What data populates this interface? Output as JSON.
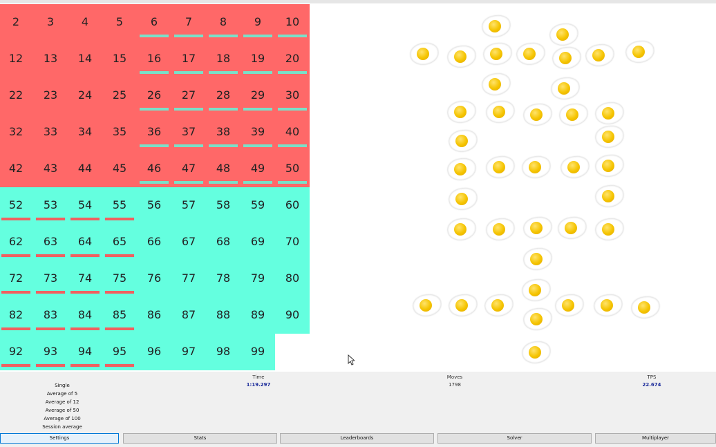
{
  "colors": {
    "red_tile": "#ff6868",
    "teal_tile": "#64ffdf",
    "teal_bar": "#7ae0c8",
    "red_bar": "#f06060",
    "board_bg": "#ffffff",
    "time_value": "#1a2a9a"
  },
  "board": {
    "tiles": [
      {
        "n": "2",
        "row": 0,
        "col": 0,
        "color": "red",
        "bar": false
      },
      {
        "n": "3",
        "row": 0,
        "col": 1,
        "color": "red",
        "bar": false
      },
      {
        "n": "4",
        "row": 0,
        "col": 2,
        "color": "red",
        "bar": false
      },
      {
        "n": "5",
        "row": 0,
        "col": 3,
        "color": "red",
        "bar": false
      },
      {
        "n": "6",
        "row": 0,
        "col": 4,
        "color": "red",
        "bar": true
      },
      {
        "n": "7",
        "row": 0,
        "col": 5,
        "color": "red",
        "bar": true
      },
      {
        "n": "8",
        "row": 0,
        "col": 6,
        "color": "red",
        "bar": true
      },
      {
        "n": "9",
        "row": 0,
        "col": 7,
        "color": "red",
        "bar": true
      },
      {
        "n": "10",
        "row": 0,
        "col": 8,
        "color": "red",
        "bar": true
      },
      {
        "n": "12",
        "row": 1,
        "col": 0,
        "color": "red",
        "bar": false
      },
      {
        "n": "13",
        "row": 1,
        "col": 1,
        "color": "red",
        "bar": false
      },
      {
        "n": "14",
        "row": 1,
        "col": 2,
        "color": "red",
        "bar": false
      },
      {
        "n": "15",
        "row": 1,
        "col": 3,
        "color": "red",
        "bar": false
      },
      {
        "n": "16",
        "row": 1,
        "col": 4,
        "color": "red",
        "bar": true
      },
      {
        "n": "17",
        "row": 1,
        "col": 5,
        "color": "red",
        "bar": true
      },
      {
        "n": "18",
        "row": 1,
        "col": 6,
        "color": "red",
        "bar": true
      },
      {
        "n": "19",
        "row": 1,
        "col": 7,
        "color": "red",
        "bar": true
      },
      {
        "n": "20",
        "row": 1,
        "col": 8,
        "color": "red",
        "bar": true
      },
      {
        "n": "22",
        "row": 2,
        "col": 0,
        "color": "red",
        "bar": false
      },
      {
        "n": "23",
        "row": 2,
        "col": 1,
        "color": "red",
        "bar": false
      },
      {
        "n": "24",
        "row": 2,
        "col": 2,
        "color": "red",
        "bar": false
      },
      {
        "n": "25",
        "row": 2,
        "col": 3,
        "color": "red",
        "bar": false
      },
      {
        "n": "26",
        "row": 2,
        "col": 4,
        "color": "red",
        "bar": true
      },
      {
        "n": "27",
        "row": 2,
        "col": 5,
        "color": "red",
        "bar": true
      },
      {
        "n": "28",
        "row": 2,
        "col": 6,
        "color": "red",
        "bar": true
      },
      {
        "n": "29",
        "row": 2,
        "col": 7,
        "color": "red",
        "bar": true
      },
      {
        "n": "30",
        "row": 2,
        "col": 8,
        "color": "red",
        "bar": true
      },
      {
        "n": "32",
        "row": 3,
        "col": 0,
        "color": "red",
        "bar": false
      },
      {
        "n": "33",
        "row": 3,
        "col": 1,
        "color": "red",
        "bar": false
      },
      {
        "n": "34",
        "row": 3,
        "col": 2,
        "color": "red",
        "bar": false
      },
      {
        "n": "35",
        "row": 3,
        "col": 3,
        "color": "red",
        "bar": false
      },
      {
        "n": "36",
        "row": 3,
        "col": 4,
        "color": "red",
        "bar": true
      },
      {
        "n": "37",
        "row": 3,
        "col": 5,
        "color": "red",
        "bar": true
      },
      {
        "n": "38",
        "row": 3,
        "col": 6,
        "color": "red",
        "bar": true
      },
      {
        "n": "39",
        "row": 3,
        "col": 7,
        "color": "red",
        "bar": true
      },
      {
        "n": "40",
        "row": 3,
        "col": 8,
        "color": "red",
        "bar": true
      },
      {
        "n": "42",
        "row": 4,
        "col": 0,
        "color": "red",
        "bar": false
      },
      {
        "n": "43",
        "row": 4,
        "col": 1,
        "color": "red",
        "bar": false
      },
      {
        "n": "44",
        "row": 4,
        "col": 2,
        "color": "red",
        "bar": false
      },
      {
        "n": "45",
        "row": 4,
        "col": 3,
        "color": "red",
        "bar": false
      },
      {
        "n": "46",
        "row": 4,
        "col": 4,
        "color": "red",
        "bar": true
      },
      {
        "n": "47",
        "row": 4,
        "col": 5,
        "color": "red",
        "bar": true
      },
      {
        "n": "48",
        "row": 4,
        "col": 6,
        "color": "red",
        "bar": true
      },
      {
        "n": "49",
        "row": 4,
        "col": 7,
        "color": "red",
        "bar": true
      },
      {
        "n": "50",
        "row": 4,
        "col": 8,
        "color": "red",
        "bar": true
      },
      {
        "n": "52",
        "row": 5,
        "col": 0,
        "color": "teal",
        "bar": true
      },
      {
        "n": "53",
        "row": 5,
        "col": 1,
        "color": "teal",
        "bar": true
      },
      {
        "n": "54",
        "row": 5,
        "col": 2,
        "color": "teal",
        "bar": true
      },
      {
        "n": "55",
        "row": 5,
        "col": 3,
        "color": "teal",
        "bar": true
      },
      {
        "n": "56",
        "row": 5,
        "col": 4,
        "color": "teal",
        "bar": false
      },
      {
        "n": "57",
        "row": 5,
        "col": 5,
        "color": "teal",
        "bar": false
      },
      {
        "n": "58",
        "row": 5,
        "col": 6,
        "color": "teal",
        "bar": false
      },
      {
        "n": "59",
        "row": 5,
        "col": 7,
        "color": "teal",
        "bar": false
      },
      {
        "n": "60",
        "row": 5,
        "col": 8,
        "color": "teal",
        "bar": false
      },
      {
        "n": "62",
        "row": 6,
        "col": 0,
        "color": "teal",
        "bar": true
      },
      {
        "n": "63",
        "row": 6,
        "col": 1,
        "color": "teal",
        "bar": true
      },
      {
        "n": "64",
        "row": 6,
        "col": 2,
        "color": "teal",
        "bar": true
      },
      {
        "n": "65",
        "row": 6,
        "col": 3,
        "color": "teal",
        "bar": true
      },
      {
        "n": "66",
        "row": 6,
        "col": 4,
        "color": "teal",
        "bar": false
      },
      {
        "n": "67",
        "row": 6,
        "col": 5,
        "color": "teal",
        "bar": false
      },
      {
        "n": "68",
        "row": 6,
        "col": 6,
        "color": "teal",
        "bar": false
      },
      {
        "n": "69",
        "row": 6,
        "col": 7,
        "color": "teal",
        "bar": false
      },
      {
        "n": "70",
        "row": 6,
        "col": 8,
        "color": "teal",
        "bar": false
      },
      {
        "n": "72",
        "row": 7,
        "col": 0,
        "color": "teal",
        "bar": true
      },
      {
        "n": "73",
        "row": 7,
        "col": 1,
        "color": "teal",
        "bar": true
      },
      {
        "n": "74",
        "row": 7,
        "col": 2,
        "color": "teal",
        "bar": true
      },
      {
        "n": "75",
        "row": 7,
        "col": 3,
        "color": "teal",
        "bar": true
      },
      {
        "n": "76",
        "row": 7,
        "col": 4,
        "color": "teal",
        "bar": false
      },
      {
        "n": "77",
        "row": 7,
        "col": 5,
        "color": "teal",
        "bar": false
      },
      {
        "n": "78",
        "row": 7,
        "col": 6,
        "color": "teal",
        "bar": false
      },
      {
        "n": "79",
        "row": 7,
        "col": 7,
        "color": "teal",
        "bar": false
      },
      {
        "n": "80",
        "row": 7,
        "col": 8,
        "color": "teal",
        "bar": false
      },
      {
        "n": "82",
        "row": 8,
        "col": 0,
        "color": "teal",
        "bar": true
      },
      {
        "n": "83",
        "row": 8,
        "col": 1,
        "color": "teal",
        "bar": true
      },
      {
        "n": "84",
        "row": 8,
        "col": 2,
        "color": "teal",
        "bar": true
      },
      {
        "n": "85",
        "row": 8,
        "col": 3,
        "color": "teal",
        "bar": true
      },
      {
        "n": "86",
        "row": 8,
        "col": 4,
        "color": "teal",
        "bar": false
      },
      {
        "n": "87",
        "row": 8,
        "col": 5,
        "color": "teal",
        "bar": false
      },
      {
        "n": "88",
        "row": 8,
        "col": 6,
        "color": "teal",
        "bar": false
      },
      {
        "n": "89",
        "row": 8,
        "col": 7,
        "color": "teal",
        "bar": false
      },
      {
        "n": "90",
        "row": 8,
        "col": 8,
        "color": "teal",
        "bar": false
      },
      {
        "n": "92",
        "row": 9,
        "col": 0,
        "color": "teal",
        "bar": true
      },
      {
        "n": "93",
        "row": 9,
        "col": 1,
        "color": "teal",
        "bar": true
      },
      {
        "n": "94",
        "row": 9,
        "col": 2,
        "color": "teal",
        "bar": true
      },
      {
        "n": "95",
        "row": 9,
        "col": 3,
        "color": "teal",
        "bar": true
      },
      {
        "n": "96",
        "row": 9,
        "col": 4,
        "color": "teal",
        "bar": false
      },
      {
        "n": "97",
        "row": 9,
        "col": 5,
        "color": "teal",
        "bar": false
      },
      {
        "n": "98",
        "row": 9,
        "col": 6,
        "color": "teal",
        "bar": false
      },
      {
        "n": "99",
        "row": 9,
        "col": 7,
        "color": "teal",
        "bar": false
      }
    ]
  },
  "stats": {
    "averages": [
      "Single",
      "Average of 5",
      "Average of 12",
      "Average of 50",
      "Average of 100",
      "Session average"
    ],
    "time_label": "Time",
    "time_value": "1:19.297",
    "moves_label": "Moves",
    "moves_value": "1798",
    "tps_label": "TPS",
    "tps_value": "22.674"
  },
  "buttons": {
    "settings": "Settings",
    "stats": "Stats",
    "leaderboards": "Leaderboards",
    "solver": "Solver",
    "multiplayer": "Multiplayer"
  }
}
